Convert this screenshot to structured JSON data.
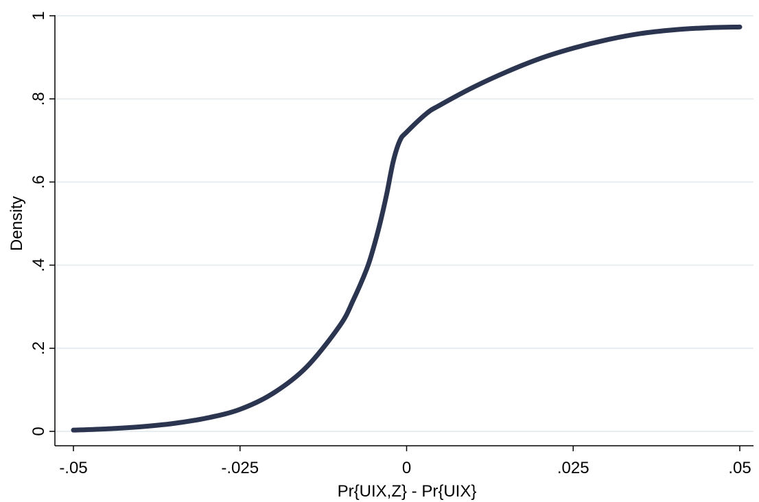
{
  "chart_data": {
    "type": "line",
    "title": "",
    "xlabel": "Pr{UIX,Z} - Pr{UIX}",
    "ylabel": "Density",
    "xlim": [
      -0.05,
      0.05
    ],
    "ylim": [
      0,
      1
    ],
    "x_ticks": [
      {
        "value": -0.05,
        "label": "-.05"
      },
      {
        "value": -0.025,
        "label": "-.025"
      },
      {
        "value": 0,
        "label": "0"
      },
      {
        "value": 0.025,
        "label": ".025"
      },
      {
        "value": 0.05,
        "label": ".05"
      }
    ],
    "y_ticks": [
      {
        "value": 0,
        "label": "0"
      },
      {
        "value": 0.2,
        "label": ".2"
      },
      {
        "value": 0.4,
        "label": ".4"
      },
      {
        "value": 0.6,
        "label": ".6"
      },
      {
        "value": 0.8,
        "label": ".8"
      },
      {
        "value": 1,
        "label": "1"
      }
    ],
    "grid": true,
    "legend": "none",
    "line_color": "#2c3550",
    "grid_color": "#e8eef0",
    "series": [
      {
        "x": [
          -0.05,
          -0.045,
          -0.04,
          -0.035,
          -0.03,
          -0.025,
          -0.02,
          -0.015,
          -0.01,
          -0.008,
          -0.006,
          -0.005,
          -0.004,
          -0.003,
          -0.002,
          -0.001,
          0,
          0.003,
          0.005,
          0.01,
          0.015,
          0.02,
          0.025,
          0.03,
          0.035,
          0.04,
          0.045,
          0.05
        ],
        "y": [
          0.003,
          0.006,
          0.011,
          0.019,
          0.032,
          0.053,
          0.092,
          0.155,
          0.255,
          0.316,
          0.39,
          0.44,
          0.5,
          0.57,
          0.65,
          0.7,
          0.72,
          0.765,
          0.785,
          0.828,
          0.865,
          0.897,
          0.922,
          0.942,
          0.957,
          0.966,
          0.971,
          0.973
        ]
      }
    ]
  }
}
